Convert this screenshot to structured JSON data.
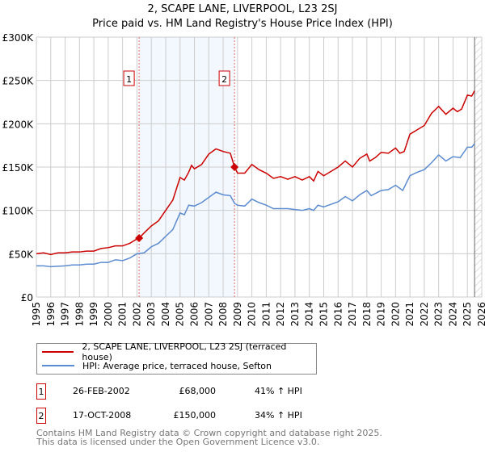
{
  "title": "2, SCAPE LANE, LIVERPOOL, L23 2SJ",
  "subtitle": "Price paid vs. HM Land Registry's House Price Index (HPI)",
  "chart_data": {
    "type": "line",
    "ylim": [
      0,
      300000
    ],
    "xlim": [
      1995,
      2026
    ],
    "yticks": [
      {
        "v": 0,
        "label": "£0"
      },
      {
        "v": 50000,
        "label": "£50K"
      },
      {
        "v": 100000,
        "label": "£100K"
      },
      {
        "v": 150000,
        "label": "£150K"
      },
      {
        "v": 200000,
        "label": "£200K"
      },
      {
        "v": 250000,
        "label": "£250K"
      },
      {
        "v": 300000,
        "label": "£300K"
      }
    ],
    "xticks": [
      "1995",
      "1996",
      "1997",
      "1998",
      "1999",
      "2000",
      "2001",
      "2002",
      "2003",
      "2004",
      "2005",
      "2006",
      "2007",
      "2008",
      "2009",
      "2010",
      "2011",
      "2012",
      "2013",
      "2014",
      "2015",
      "2016",
      "2017",
      "2018",
      "2019",
      "2020",
      "2021",
      "2022",
      "2023",
      "2024",
      "2025",
      "2026"
    ],
    "shaded_period": [
      2002.15,
      2008.79
    ],
    "forecast_hatch_from": 2025.5,
    "series": [
      {
        "name": "2, SCAPE LANE, LIVERPOOL, L23 2SJ (terraced house)",
        "color": "#cc0000",
        "x": [
          1995,
          1995.5,
          1996,
          1996.5,
          1997,
          1997.5,
          1998,
          1998.5,
          1999,
          1999.5,
          2000,
          2000.5,
          2001,
          2001.5,
          2002,
          2002.15,
          2002.5,
          2003,
          2003.5,
          2004,
          2004.5,
          2005,
          2005.3,
          2005.6,
          2005.8,
          2006,
          2006.5,
          2007,
          2007.5,
          2008,
          2008.5,
          2008.79,
          2009,
          2009.5,
          2010,
          2010.5,
          2011,
          2011.5,
          2012,
          2012.5,
          2013,
          2013.5,
          2014,
          2014.3,
          2014.6,
          2015,
          2015.5,
          2016,
          2016.5,
          2017,
          2017.5,
          2018,
          2018.2,
          2018.6,
          2019,
          2019.5,
          2020,
          2020.3,
          2020.6,
          2021,
          2021.5,
          2022,
          2022.5,
          2023,
          2023.5,
          2024,
          2024.3,
          2024.6,
          2025,
          2025.3,
          2025.5
        ],
        "y": [
          50000,
          51000,
          49000,
          51000,
          51000,
          52000,
          52000,
          53000,
          53000,
          56000,
          57000,
          59000,
          59000,
          62000,
          67000,
          68000,
          74000,
          82000,
          88000,
          100000,
          112000,
          138000,
          135000,
          144000,
          152000,
          148000,
          153000,
          165000,
          171000,
          168000,
          166000,
          150000,
          143000,
          143000,
          153000,
          147000,
          143000,
          137000,
          139000,
          136000,
          139000,
          135000,
          139000,
          134000,
          145000,
          140000,
          145000,
          150000,
          157000,
          150000,
          160000,
          165000,
          157000,
          161000,
          167000,
          166000,
          172000,
          166000,
          168000,
          188000,
          193000,
          198000,
          212000,
          220000,
          211000,
          218000,
          214000,
          217000,
          233000,
          232000,
          238000
        ]
      },
      {
        "name": "HPI: Average price, terraced house, Sefton",
        "color": "#5b8bd0",
        "x": [
          1995,
          1995.5,
          1996,
          1996.5,
          1997,
          1997.5,
          1998,
          1998.5,
          1999,
          1999.5,
          2000,
          2000.5,
          2001,
          2001.5,
          2002,
          2002.5,
          2003,
          2003.5,
          2004,
          2004.5,
          2005,
          2005.3,
          2005.6,
          2006,
          2006.5,
          2007,
          2007.5,
          2008,
          2008.5,
          2008.8,
          2009,
          2009.5,
          2010,
          2010.5,
          2011,
          2011.5,
          2012,
          2012.5,
          2013,
          2013.5,
          2014,
          2014.3,
          2014.6,
          2015,
          2015.5,
          2016,
          2016.5,
          2017,
          2017.5,
          2018,
          2018.3,
          2019,
          2019.5,
          2020,
          2020.5,
          2021,
          2021.5,
          2022,
          2022.5,
          2023,
          2023.5,
          2024,
          2024.5,
          2025,
          2025.3,
          2025.5
        ],
        "y": [
          36000,
          36000,
          35000,
          35500,
          36000,
          37000,
          37000,
          38000,
          38000,
          40000,
          40000,
          43000,
          42000,
          45000,
          50000,
          51000,
          58000,
          62000,
          70000,
          78000,
          97000,
          95000,
          106000,
          105000,
          109000,
          115000,
          121000,
          118000,
          117000,
          108000,
          106000,
          105000,
          113000,
          109000,
          106000,
          102000,
          102000,
          102000,
          101000,
          100000,
          102000,
          100000,
          106000,
          104000,
          107000,
          110000,
          116000,
          111000,
          118000,
          123000,
          117000,
          123000,
          124000,
          129000,
          123000,
          140000,
          144000,
          147000,
          155000,
          164000,
          157000,
          162000,
          161000,
          173000,
          173000,
          177000
        ]
      }
    ]
  },
  "markers": [
    {
      "label": "1",
      "year": 2002.15,
      "value": 68000
    },
    {
      "label": "2",
      "year": 2008.79,
      "value": 150000
    }
  ],
  "legend": {
    "property": "2, SCAPE LANE, LIVERPOOL, L23 2SJ (terraced house)",
    "hpi": "HPI: Average price, terraced house, Sefton"
  },
  "transactions": [
    {
      "num": "1",
      "date": "26-FEB-2002",
      "price": "£68,000",
      "hpi": "41% ↑ HPI"
    },
    {
      "num": "2",
      "date": "17-OCT-2008",
      "price": "£150,000",
      "hpi": "34% ↑ HPI"
    }
  ],
  "footer": [
    "Contains HM Land Registry data © Crown copyright and database right 2025.",
    "This data is licensed under the Open Government Licence v3.0."
  ]
}
